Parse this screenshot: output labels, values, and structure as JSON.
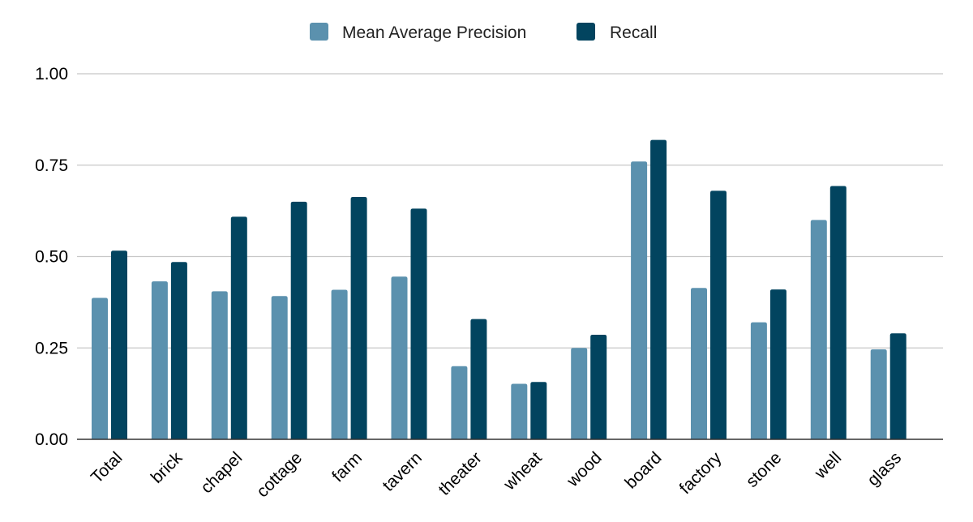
{
  "chart_data": {
    "type": "bar",
    "categories": [
      "Total",
      "brick",
      "chapel",
      "cottage",
      "farm",
      "tavern",
      "theater",
      "wheat",
      "wood",
      "board",
      "factory",
      "stone",
      "well",
      "glass"
    ],
    "series": [
      {
        "name": "Mean Average Precision",
        "color": "#5b91ae",
        "values": [
          0.387,
          0.432,
          0.405,
          0.392,
          0.409,
          0.445,
          0.2,
          0.152,
          0.25,
          0.76,
          0.414,
          0.32,
          0.6,
          0.246
        ]
      },
      {
        "name": "Recall",
        "color": "#02445f",
        "values": [
          0.516,
          0.485,
          0.609,
          0.65,
          0.663,
          0.631,
          0.329,
          0.157,
          0.286,
          0.819,
          0.68,
          0.41,
          0.693,
          0.29
        ]
      }
    ],
    "yticks": [
      "0.00",
      "0.25",
      "0.50",
      "0.75",
      "1.00"
    ],
    "ylim": [
      0,
      1
    ],
    "grid": true,
    "legend": "top-center",
    "title": "",
    "xlabel": "",
    "ylabel": ""
  }
}
